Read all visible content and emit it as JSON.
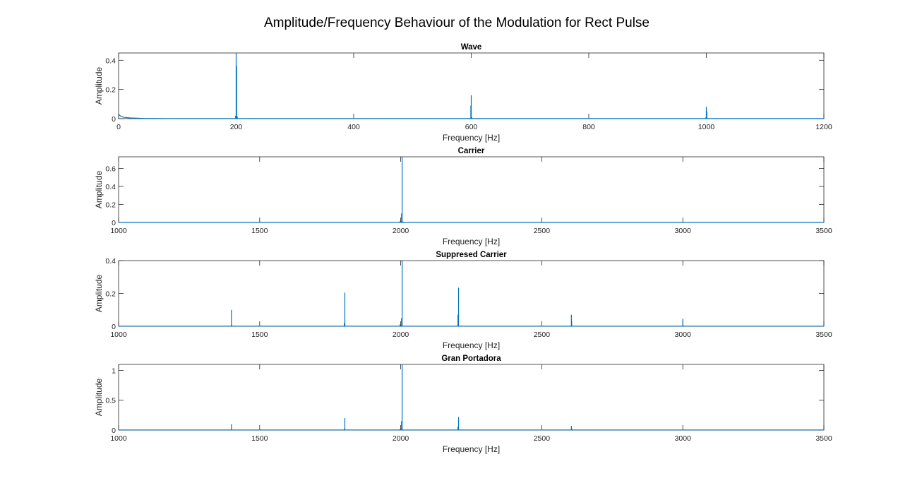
{
  "figure": {
    "title": "Amplitude/Frequency Behaviour of the Modulation for Rect Pulse",
    "line_color": "#0072BD",
    "grid": false
  },
  "chart_data": [
    {
      "type": "line",
      "title": "Wave",
      "xlabel": "Frequency [Hz]",
      "ylabel": "Amplitude",
      "xlim": [
        0,
        1200
      ],
      "ylim": [
        0,
        0.45
      ],
      "xticks": [
        0,
        200,
        400,
        600,
        800,
        1000,
        1200
      ],
      "yticks": [
        0,
        0.2,
        0.4
      ],
      "xtick_labels": [
        "0",
        "200",
        "400",
        "600",
        "800",
        "1000",
        "1200"
      ],
      "ytick_labels": [
        "0",
        "0.2",
        "0.4"
      ],
      "baseline": [
        [
          0,
          0.03
        ],
        [
          4,
          0.015
        ],
        [
          10,
          0.008
        ],
        [
          20,
          0.005
        ],
        [
          40,
          0.002
        ],
        [
          80,
          0.001
        ],
        [
          1200,
          0.0005
        ]
      ],
      "peaks": [
        {
          "x": 200,
          "y": 0.45
        },
        {
          "x": 200.8,
          "y": 0.36
        },
        {
          "x": 199,
          "y": 0.02
        },
        {
          "x": 202,
          "y": 0.015
        },
        {
          "x": 225,
          "y": 0.004
        },
        {
          "x": 600,
          "y": 0.16
        },
        {
          "x": 599.3,
          "y": 0.09
        },
        {
          "x": 601,
          "y": 0.01
        },
        {
          "x": 1000,
          "y": 0.08
        },
        {
          "x": 1000.8,
          "y": 0.05
        },
        {
          "x": 999,
          "y": 0.008
        }
      ]
    },
    {
      "type": "line",
      "title": "Carrier",
      "xlabel": "Frequency [Hz]",
      "ylabel": "Amplitude",
      "xlim": [
        1000,
        3500
      ],
      "ylim": [
        0,
        0.73
      ],
      "xticks": [
        1000,
        1500,
        2000,
        2500,
        3000,
        3500
      ],
      "yticks": [
        0,
        0.2,
        0.4,
        0.6
      ],
      "xtick_labels": [
        "1000",
        "1500",
        "2000",
        "2500",
        "3000",
        "3500"
      ],
      "ytick_labels": [
        "0",
        "0.2",
        "0.4",
        "0.6"
      ],
      "baseline": [
        [
          1000,
          0.001
        ],
        [
          3500,
          0.001
        ]
      ],
      "peaks": [
        {
          "x": 2005,
          "y": 0.73
        },
        {
          "x": 2003,
          "y": 0.1
        },
        {
          "x": 1998,
          "y": 0.015
        },
        {
          "x": 2008,
          "y": 0.01
        }
      ]
    },
    {
      "type": "line",
      "title": "Suppresed Carrier",
      "xlabel": "Frequency [Hz]",
      "ylabel": "Amplitude",
      "xlim": [
        1000,
        3500
      ],
      "ylim": [
        0,
        0.4
      ],
      "xticks": [
        1000,
        1500,
        2000,
        2500,
        3000,
        3500
      ],
      "yticks": [
        0,
        0.2,
        0.4
      ],
      "xtick_labels": [
        "1000",
        "1500",
        "2000",
        "2500",
        "3000",
        "3500"
      ],
      "ytick_labels": [
        "0",
        "0.2",
        "0.4"
      ],
      "baseline": [
        [
          1000,
          0.001
        ],
        [
          3500,
          0.001
        ]
      ],
      "peaks": [
        {
          "x": 1400,
          "y": 0.1
        },
        {
          "x": 1401,
          "y": 0.01
        },
        {
          "x": 1802,
          "y": 0.205
        },
        {
          "x": 1800,
          "y": 0.02
        },
        {
          "x": 2005,
          "y": 0.4
        },
        {
          "x": 2003,
          "y": 0.05
        },
        {
          "x": 1998,
          "y": 0.012
        },
        {
          "x": 2205,
          "y": 0.235
        },
        {
          "x": 2203,
          "y": 0.07
        },
        {
          "x": 2605,
          "y": 0.07
        },
        {
          "x": 2606,
          "y": 0.03
        },
        {
          "x": 3000,
          "y": 0.045
        }
      ]
    },
    {
      "type": "line",
      "title": "Gran Portadora",
      "xlabel": "Frequency [Hz]",
      "ylabel": "Amplitude",
      "xlim": [
        1000,
        3500
      ],
      "ylim": [
        0,
        1.1
      ],
      "xticks": [
        1000,
        1500,
        2000,
        2500,
        3000,
        3500
      ],
      "yticks": [
        0,
        0.5,
        1
      ],
      "xtick_labels": [
        "1000",
        "1500",
        "2000",
        "2500",
        "3000",
        "3500"
      ],
      "ytick_labels": [
        "0",
        "0.5",
        "1"
      ],
      "baseline": [
        [
          1000,
          0.002
        ],
        [
          3500,
          0.002
        ]
      ],
      "peaks": [
        {
          "x": 1400,
          "y": 0.1
        },
        {
          "x": 1802,
          "y": 0.2
        },
        {
          "x": 1800,
          "y": 0.02
        },
        {
          "x": 2005,
          "y": 1.1
        },
        {
          "x": 2003,
          "y": 0.15
        },
        {
          "x": 1998,
          "y": 0.02
        },
        {
          "x": 2205,
          "y": 0.22
        },
        {
          "x": 2203,
          "y": 0.06
        },
        {
          "x": 2605,
          "y": 0.07
        },
        {
          "x": 2606,
          "y": 0.03
        }
      ]
    }
  ]
}
